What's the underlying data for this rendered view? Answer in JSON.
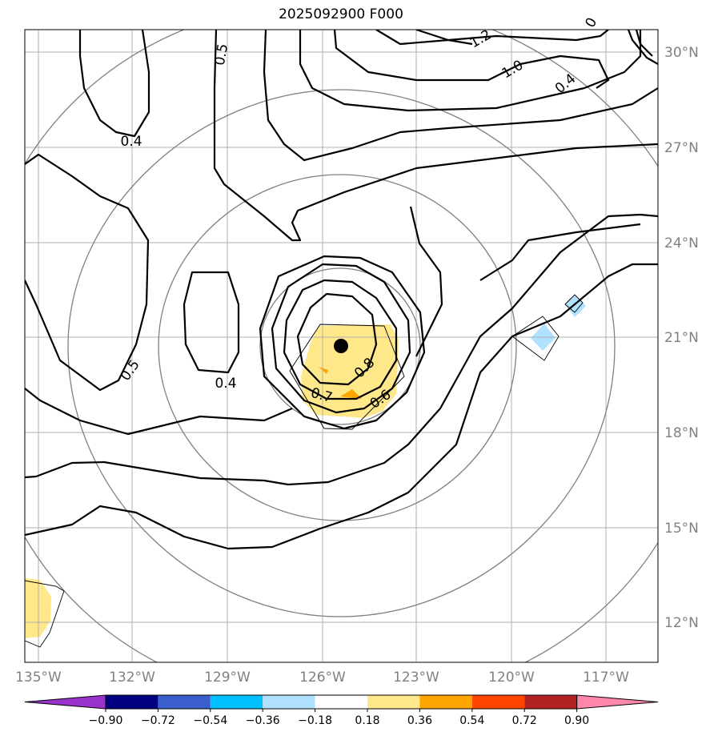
{
  "chart_data": {
    "type": "contour",
    "title": "2025092900 F000",
    "x_ticks": [
      "135°W",
      "132°W",
      "129°W",
      "126°W",
      "123°W",
      "120°W",
      "117°W"
    ],
    "y_ticks": [
      "30°N",
      "27°N",
      "24°N",
      "21°N",
      "18°N",
      "15°N",
      "12°N"
    ],
    "contour_labels": [
      "0.5",
      "0.4",
      "1.2",
      "1.0",
      "0.4",
      "0.5",
      "0.4",
      "0.8",
      "0.7",
      "0.6",
      "0"
    ],
    "colorbar": {
      "ticks": [
        "−0.90",
        "−0.72",
        "−0.54",
        "−0.36",
        "−0.18",
        "0.18",
        "0.36",
        "0.54",
        "0.72",
        "0.90"
      ],
      "colors": [
        "#9933cc",
        "#000080",
        "#3a5fcd",
        "#00bfff",
        "#b0e2ff",
        "#ffffff",
        "#ffe88a",
        "#ffa500",
        "#ff4500",
        "#b22222",
        "#ff88aa"
      ]
    },
    "center_marker": {
      "lon": -125.1,
      "lat": 20.7
    },
    "grid": true
  }
}
